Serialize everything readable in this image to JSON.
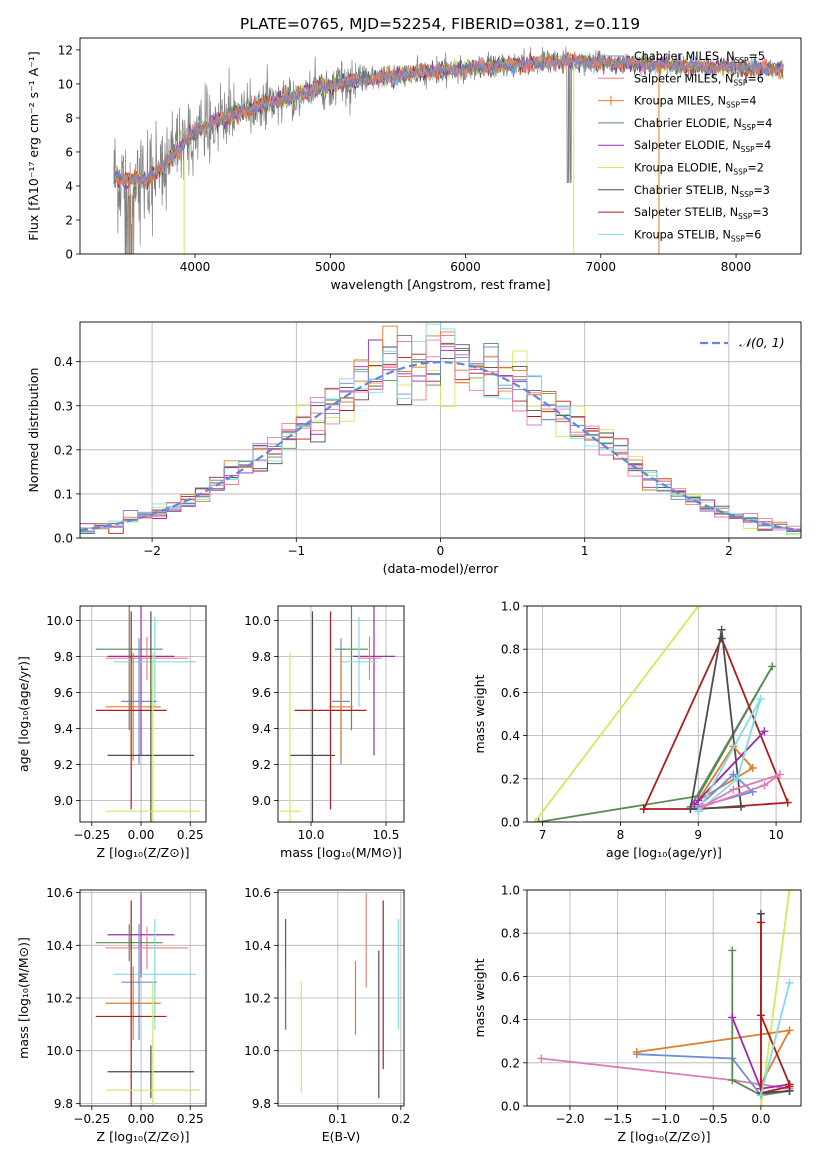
{
  "figure": {
    "title": "PLATE=0765, MJD=52254, FIBERID=0381, z=0.119"
  },
  "colors": {
    "Chabrier MILES": "#6b8fd8",
    "Salpeter MILES": "#f08080",
    "Kroupa MILES": "#e07d2b",
    "Chabrier ELODIE": "#5a8a5a",
    "Salpeter ELODIE": "#9a2bb0",
    "Kroupa ELODIE": "#d4e85a",
    "Chabrier STELIB": "#4d4d4d",
    "Salpeter STELIB": "#b01c1c",
    "Kroupa STELIB": "#7fdde8",
    "pink": "#e07bb5",
    "data": "#808080",
    "normal": "#5b8bd9"
  },
  "chart_data": [
    {
      "id": "spectrum",
      "type": "line",
      "xlabel": "wavelength [Angstrom, rest frame]",
      "ylabel": "Flux [fλ10⁻¹⁷ erg cm⁻² s⁻¹ A⁻¹]",
      "xlim": [
        3150,
        8480
      ],
      "ylim": [
        0,
        12.7
      ],
      "xticks": [
        4000,
        5000,
        6000,
        7000,
        8000
      ],
      "yticks": [
        0,
        2,
        4,
        6,
        8,
        10,
        12
      ],
      "x_start": 3400,
      "x_end": 8350,
      "legend_position": "upper right",
      "legend": [
        {
          "name": "Chabrier MILES",
          "label": "Chabrier MILES, N",
          "sub": "SSP",
          "n": "=5",
          "marker": false
        },
        {
          "name": "Salpeter MILES",
          "label": "Salpeter MILES, N",
          "sub": "SSP",
          "n": "=6",
          "marker": false
        },
        {
          "name": "Kroupa MILES",
          "label": "Kroupa MILES, N",
          "sub": "SSP",
          "n": "=4",
          "marker": true
        },
        {
          "name": "Chabrier ELODIE",
          "label": "Chabrier ELODIE, N",
          "sub": "SSP",
          "n": "=4",
          "marker": false
        },
        {
          "name": "Salpeter ELODIE",
          "label": "Salpeter ELODIE, N",
          "sub": "SSP",
          "n": "=4",
          "marker": false
        },
        {
          "name": "Kroupa ELODIE",
          "label": "Kroupa ELODIE, N",
          "sub": "SSP",
          "n": "=2",
          "marker": false
        },
        {
          "name": "Chabrier STELIB",
          "label": "Chabrier STELIB, N",
          "sub": "SSP",
          "n": "=3",
          "marker": false
        },
        {
          "name": "Salpeter STELIB",
          "label": "Salpeter STELIB, N",
          "sub": "SSP",
          "n": "=3",
          "marker": false
        },
        {
          "name": "Kroupa STELIB",
          "label": "Kroupa STELIB, N",
          "sub": "SSP",
          "n": "=6",
          "marker": false
        }
      ],
      "continuum": [
        [
          3400,
          4.6
        ],
        [
          3500,
          4.3
        ],
        [
          3650,
          4.4
        ],
        [
          3750,
          5.1
        ],
        [
          3850,
          5.9
        ],
        [
          3950,
          6.8
        ],
        [
          4050,
          7.4
        ],
        [
          4150,
          7.8
        ],
        [
          4300,
          8.2
        ],
        [
          4500,
          8.8
        ],
        [
          4700,
          9.2
        ],
        [
          4900,
          9.7
        ],
        [
          5100,
          10.1
        ],
        [
          5300,
          10.3
        ],
        [
          5500,
          10.5
        ],
        [
          5700,
          10.7
        ],
        [
          5900,
          10.8
        ],
        [
          6100,
          11.0
        ],
        [
          6300,
          11.1
        ],
        [
          6500,
          11.2
        ],
        [
          6700,
          11.3
        ],
        [
          6900,
          11.3
        ],
        [
          7100,
          11.2
        ],
        [
          7300,
          11.2
        ],
        [
          7500,
          11.1
        ],
        [
          7700,
          11.0
        ],
        [
          7900,
          11.0
        ],
        [
          8100,
          10.9
        ],
        [
          8350,
          10.9
        ]
      ]
    },
    {
      "id": "residuals",
      "type": "bar",
      "xlabel": "(data-model)/error",
      "ylabel": "Normed distribution",
      "xlim": [
        -2.5,
        2.5
      ],
      "ylim": [
        0,
        0.49
      ],
      "xticks": [
        -2,
        -1,
        0,
        1,
        2
      ],
      "xtick_labels": [
        "−2",
        "−1",
        "0",
        "1",
        "2"
      ],
      "yticks": [
        0,
        0.1,
        0.2,
        0.3,
        0.4
      ],
      "ytick_labels": [
        "0.0",
        "0.1",
        "0.2",
        "0.3",
        "0.4"
      ],
      "bins": 50,
      "legend": {
        "label": "𝒩(0, 1)",
        "position": "upper right"
      }
    },
    {
      "id": "age-vs-Z",
      "type": "scatter",
      "xlabel": "Z [log₁₀(Z/Z⊙)]",
      "ylabel": "age  [log₁₀(age/yr)]",
      "xlim": [
        -0.31,
        0.33
      ],
      "ylim": [
        8.88,
        10.08
      ],
      "xticks": [
        -0.25,
        0.0,
        0.25
      ],
      "xtick_labels": [
        "−0.25",
        "0.00",
        "0.25"
      ],
      "yticks": [
        9.0,
        9.2,
        9.4,
        9.6,
        9.8,
        10.0
      ],
      "ytick_labels": [
        "9.0",
        "9.2",
        "9.4",
        "9.6",
        "9.8",
        "10.0"
      ],
      "points": [
        {
          "c": "Chabrier ELODIE",
          "x": -0.06,
          "xe": 0.17,
          "y": 9.84,
          "ye": 0.45
        },
        {
          "c": "Salpeter ELODIE",
          "x": 0.0,
          "xe": 0.17,
          "y": 9.8,
          "ye": 0.55
        },
        {
          "c": "Salpeter MILES",
          "x": 0.03,
          "xe": 0.21,
          "y": 9.79,
          "ye": 0.12
        },
        {
          "c": "Kroupa STELIB",
          "x": 0.07,
          "xe": 0.21,
          "y": 9.77,
          "ye": 0.25
        },
        {
          "c": "Chabrier MILES",
          "x": -0.01,
          "xe": 0.09,
          "y": 9.55,
          "ye": 0.35
        },
        {
          "c": "Kroupa MILES",
          "x": -0.04,
          "xe": 0.14,
          "y": 9.52,
          "ye": 0.3
        },
        {
          "c": "Salpeter STELIB",
          "x": -0.05,
          "xe": 0.18,
          "y": 9.5,
          "ye": 0.55
        },
        {
          "c": "Chabrier STELIB",
          "x": 0.05,
          "xe": 0.22,
          "y": 9.25,
          "ye": 0.8
        },
        {
          "c": "Kroupa ELODIE",
          "x": 0.06,
          "xe": 0.24,
          "y": 8.94,
          "ye": 0.88
        }
      ]
    },
    {
      "id": "age-vs-mass",
      "type": "scatter",
      "xlabel": "mass [log₁₀(M/M⊙)]",
      "ylabel": "",
      "xlim": [
        9.78,
        10.62
      ],
      "ylim": [
        8.88,
        10.08
      ],
      "xticks": [
        10.0,
        10.5
      ],
      "xtick_labels": [
        "10.0",
        "10.5"
      ],
      "yticks": [
        9.0,
        9.2,
        9.4,
        9.6,
        9.8,
        10.0
      ],
      "ytick_labels": [
        "9.0",
        "9.2",
        "9.4",
        "9.6",
        "9.8",
        "10.0"
      ],
      "points": [
        {
          "c": "Chabrier ELODIE",
          "x": 10.27,
          "xe": 0.11,
          "y": 9.84,
          "ye": 0.45
        },
        {
          "c": "Salpeter ELODIE",
          "x": 10.42,
          "xe": 0.14,
          "y": 9.8,
          "ye": 0.55
        },
        {
          "c": "Salpeter MILES",
          "x": 10.39,
          "xe": 0.08,
          "y": 9.79,
          "ye": 0.12
        },
        {
          "c": "Kroupa STELIB",
          "x": 10.32,
          "xe": 0.12,
          "y": 9.77,
          "ye": 0.25
        },
        {
          "c": "Chabrier MILES",
          "x": 10.2,
          "xe": 0.06,
          "y": 9.55,
          "ye": 0.35
        },
        {
          "c": "Kroupa MILES",
          "x": 10.2,
          "xe": 0.08,
          "y": 9.52,
          "ye": 0.3
        },
        {
          "c": "Salpeter STELIB",
          "x": 10.13,
          "xe": 0.24,
          "y": 9.5,
          "ye": 0.55
        },
        {
          "c": "Chabrier STELIB",
          "x": 10.01,
          "xe": 0.15,
          "y": 9.25,
          "ye": 0.8
        },
        {
          "c": "Kroupa ELODIE",
          "x": 9.86,
          "xe": 0.07,
          "y": 8.94,
          "ye": 0.88
        }
      ]
    },
    {
      "id": "weight-vs-age",
      "type": "line",
      "xlabel": "age  [log₁₀(age/yr)]",
      "ylabel": "mass weight",
      "xlim": [
        6.8,
        10.32
      ],
      "ylim": [
        0,
        1
      ],
      "xticks": [
        7,
        8,
        9,
        10
      ],
      "xtick_labels": [
        "7",
        "8",
        "9",
        "10"
      ],
      "yticks": [
        0,
        0.2,
        0.4,
        0.6,
        0.8,
        1.0
      ],
      "ytick_labels": [
        "0.0",
        "0.2",
        "0.4",
        "0.6",
        "0.8",
        "1.0"
      ],
      "series": [
        {
          "c": "Kroupa ELODIE",
          "x": [
            6.9,
            9.0
          ],
          "y": [
            0.0,
            1.0
          ]
        },
        {
          "c": "Chabrier ELODIE",
          "x": [
            6.95,
            9.0,
            9.95,
            8.9
          ],
          "y": [
            0.0,
            0.12,
            0.72,
            0.07
          ]
        },
        {
          "c": "Salpeter STELIB",
          "x": [
            8.3,
            9.3,
            10.15,
            9.0,
            8.3
          ],
          "y": [
            0.06,
            0.85,
            0.09,
            0.06,
            0.06
          ]
        },
        {
          "c": "Chabrier STELIB",
          "x": [
            8.9,
            9.3,
            9.55,
            8.9
          ],
          "y": [
            0.06,
            0.89,
            0.07,
            0.06
          ]
        },
        {
          "c": "Kroupa MILES",
          "x": [
            9.0,
            9.45,
            9.7,
            9.0
          ],
          "y": [
            0.1,
            0.35,
            0.25,
            0.1
          ]
        },
        {
          "c": "Chabrier MILES",
          "x": [
            9.0,
            9.45,
            9.7,
            9.0
          ],
          "y": [
            0.07,
            0.22,
            0.14,
            0.07
          ]
        },
        {
          "c": "Salpeter ELODIE",
          "x": [
            8.95,
            9.85,
            9.0
          ],
          "y": [
            0.08,
            0.42,
            0.1
          ],
          "wrap": false
        },
        {
          "c": "Kroupa STELIB",
          "x": [
            9.0,
            9.8,
            9.5,
            9.0
          ],
          "y": [
            0.05,
            0.57,
            0.2,
            0.05
          ]
        },
        {
          "c": "pink",
          "x": [
            9.05,
            9.85,
            10.05,
            9.45,
            9.05
          ],
          "y": [
            0.07,
            0.17,
            0.22,
            0.15,
            0.07
          ]
        }
      ]
    },
    {
      "id": "mass-vs-Z",
      "type": "scatter",
      "xlabel": "Z [log₁₀(Z/Z⊙)]",
      "ylabel": "mass [log₁₀(M/M⊙)]",
      "xlim": [
        -0.31,
        0.33
      ],
      "ylim": [
        9.79,
        10.61
      ],
      "xticks": [
        -0.25,
        0.0,
        0.25
      ],
      "xtick_labels": [
        "−0.25",
        "0.00",
        "0.25"
      ],
      "yticks": [
        9.8,
        10.0,
        10.2,
        10.4,
        10.6
      ],
      "ytick_labels": [
        "9.8",
        "10.0",
        "10.2",
        "10.4",
        "10.6"
      ],
      "points": [
        {
          "c": "Salpeter ELODIE",
          "x": 0.0,
          "xe": 0.17,
          "y": 10.44,
          "ye": 0.16
        },
        {
          "c": "Chabrier ELODIE",
          "x": -0.06,
          "xe": 0.17,
          "y": 10.41,
          "ye": 0.07
        },
        {
          "c": "Salpeter MILES",
          "x": 0.03,
          "xe": 0.21,
          "y": 10.39,
          "ye": 0.08
        },
        {
          "c": "Kroupa STELIB",
          "x": 0.07,
          "xe": 0.21,
          "y": 10.29,
          "ye": 0.21
        },
        {
          "c": "Chabrier MILES",
          "x": -0.01,
          "xe": 0.09,
          "y": 10.26,
          "ye": 0.22
        },
        {
          "c": "Kroupa MILES",
          "x": -0.04,
          "xe": 0.14,
          "y": 10.18,
          "ye": 0.14
        },
        {
          "c": "Salpeter STELIB",
          "x": -0.05,
          "xe": 0.18,
          "y": 10.13,
          "ye": 0.44
        },
        {
          "c": "Chabrier STELIB",
          "x": 0.05,
          "xe": 0.22,
          "y": 9.92,
          "ye": 0.1
        },
        {
          "c": "Kroupa ELODIE",
          "x": 0.06,
          "xe": 0.24,
          "y": 9.85,
          "ye": 0.41
        }
      ]
    },
    {
      "id": "mass-vs-EBV",
      "type": "scatter",
      "xlabel": "E(B-V)",
      "ylabel": "",
      "xlim": [
        0.005,
        0.205
      ],
      "ylim": [
        9.79,
        10.61
      ],
      "xticks": [
        0.1,
        0.2
      ],
      "xtick_labels": [
        "0.1",
        "0.2"
      ],
      "yticks": [
        9.8,
        10.0,
        10.2,
        10.4,
        10.6
      ],
      "ytick_labels": [
        "9.8",
        "10.0",
        "10.2",
        "10.4",
        "10.6"
      ],
      "points": [
        {
          "c": "Salpeter ELODIE",
          "x": 0.017,
          "y": 10.29,
          "ye": 0.21
        },
        {
          "c": "Chabrier ELODIE",
          "x": 0.017,
          "y": 10.2,
          "ye": 0.12
        },
        {
          "c": "Kroupa ELODIE",
          "x": 0.042,
          "y": 10.05,
          "ye": 0.21
        },
        {
          "c": "Kroupa MILES",
          "x": 0.128,
          "y": 10.2,
          "ye": 0.14
        },
        {
          "c": "Salpeter MILES",
          "x": 0.145,
          "y": 10.42,
          "ye": 0.18
        },
        {
          "c": "Chabrier STELIB",
          "x": 0.165,
          "y": 10.1,
          "ye": 0.28
        },
        {
          "c": "Salpeter STELIB",
          "x": 0.172,
          "y": 10.25,
          "ye": 0.32
        },
        {
          "c": "Kroupa STELIB",
          "x": 0.196,
          "y": 10.29,
          "ye": 0.21
        }
      ]
    },
    {
      "id": "weight-vs-Z",
      "type": "line",
      "xlabel": "Z [log₁₀(Z/Z⊙)]",
      "ylabel": "mass weight",
      "xlim": [
        -2.45,
        0.42
      ],
      "ylim": [
        0,
        1
      ],
      "xticks": [
        -2.0,
        -1.5,
        -1.0,
        -0.5,
        0.0
      ],
      "xtick_labels": [
        "−2.0",
        "−1.5",
        "−1.0",
        "−0.5",
        "0.0"
      ],
      "yticks": [
        0,
        0.2,
        0.4,
        0.6,
        0.8,
        1.0
      ],
      "ytick_labels": [
        "0.0",
        "0.2",
        "0.4",
        "0.6",
        "0.8",
        "1.0"
      ],
      "series": [
        {
          "c": "Kroupa ELODIE",
          "x": [
            0.0,
            0.3
          ],
          "y": [
            0.0,
            1.0
          ]
        },
        {
          "c": "pink",
          "x": [
            -2.3,
            -0.3,
            0.0,
            0.3
          ],
          "y": [
            0.22,
            0.12,
            0.1,
            0.08
          ]
        },
        {
          "c": "Chabrier MILES",
          "x": [
            -1.3,
            -0.3,
            0.0,
            0.3
          ],
          "y": [
            0.24,
            0.22,
            0.05,
            0.07
          ]
        },
        {
          "c": "Kroupa MILES",
          "x": [
            -1.3,
            0.3,
            0.0
          ],
          "y": [
            0.25,
            0.35,
            0.1
          ]
        },
        {
          "c": "Chabrier ELODIE",
          "x": [
            -0.3,
            -0.3,
            0.0,
            0.3
          ],
          "y": [
            0.72,
            0.12,
            0.05,
            0.07
          ]
        },
        {
          "c": "Salpeter ELODIE",
          "x": [
            -0.3,
            0.0,
            0.3
          ],
          "y": [
            0.41,
            0.08,
            0.1
          ]
        },
        {
          "c": "Chabrier STELIB",
          "x": [
            0.0,
            0.0,
            0.3
          ],
          "y": [
            0.89,
            0.06,
            0.07
          ]
        },
        {
          "c": "Salpeter STELIB",
          "x": [
            0.0,
            0.0,
            0.3
          ],
          "y": [
            0.85,
            0.06,
            0.09
          ]
        },
        {
          "c": "Salpeter STELIB",
          "x": [
            0.0,
            0.3
          ],
          "y": [
            0.42,
            0.1
          ]
        },
        {
          "c": "Kroupa STELIB",
          "x": [
            0.0,
            0.3
          ],
          "y": [
            0.05,
            0.57
          ]
        }
      ]
    }
  ]
}
